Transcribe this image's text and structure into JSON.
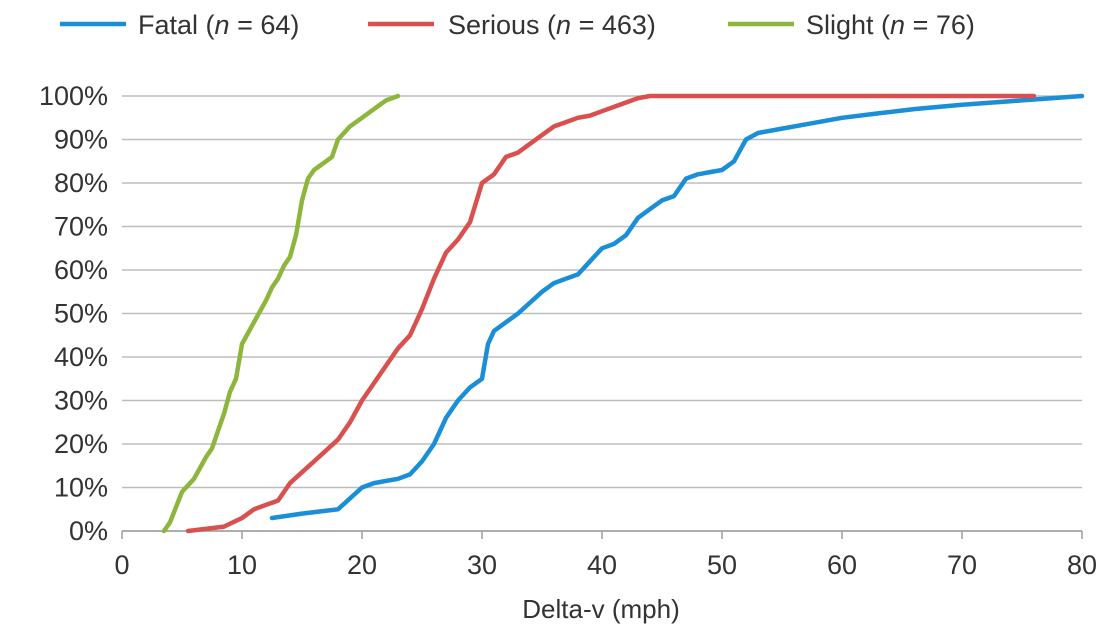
{
  "chart_data": {
    "type": "line",
    "title": "",
    "xlabel": "Delta-v (mph)",
    "ylabel": "",
    "xlim": [
      0,
      80
    ],
    "ylim": [
      0,
      100
    ],
    "x_ticks": [
      0,
      10,
      20,
      30,
      40,
      50,
      60,
      70,
      80
    ],
    "x_tick_labels": [
      "0",
      "10",
      "20",
      "30",
      "40",
      "50",
      "60",
      "70",
      "80"
    ],
    "y_ticks": [
      0,
      10,
      20,
      30,
      40,
      50,
      60,
      70,
      80,
      90,
      100
    ],
    "y_tick_labels": [
      "0%",
      "10%",
      "20%",
      "30%",
      "40%",
      "50%",
      "60%",
      "70%",
      "80%",
      "90%",
      "100%"
    ],
    "grid": "horizontal",
    "legend_position": "top",
    "series": [
      {
        "name": "Fatal",
        "n_label": "n",
        "n_value": "= 64)",
        "name_prefix": "Fatal (",
        "color": "#1a8fd8",
        "x": [
          12.5,
          15,
          18,
          20,
          21,
          23,
          24,
          25,
          26,
          27,
          28,
          29,
          30,
          30.5,
          31,
          33,
          35,
          36,
          37,
          38,
          39,
          40,
          41,
          42,
          43,
          44,
          45,
          46,
          47,
          48,
          49,
          50,
          51,
          52,
          53,
          55,
          57,
          60,
          63,
          66,
          70,
          75,
          80
        ],
        "y": [
          3,
          4,
          5,
          10,
          11,
          12,
          13,
          16,
          20,
          26,
          30,
          33,
          35,
          43,
          46,
          50,
          55,
          57,
          58,
          59,
          62,
          65,
          66,
          68,
          72,
          74,
          76,
          77,
          81,
          82,
          82.5,
          83,
          85,
          90,
          91.5,
          92.5,
          93.5,
          95,
          96,
          97,
          98,
          99,
          100
        ]
      },
      {
        "name": "Serious",
        "n_label": "n",
        "n_value": "= 463)",
        "name_prefix": "Serious (",
        "color": "#d9514e",
        "x": [
          5.5,
          8.5,
          10,
          11,
          12,
          13,
          14,
          16,
          18,
          19,
          20,
          21,
          22,
          23,
          24,
          25,
          26,
          27,
          28,
          29,
          30,
          31,
          32,
          33,
          34,
          35,
          36,
          37,
          38,
          39,
          40,
          41,
          42,
          43,
          44,
          50,
          60,
          70,
          76
        ],
        "y": [
          0,
          1,
          3,
          5,
          6,
          7,
          11,
          16,
          21,
          25,
          30,
          34,
          38,
          42,
          45,
          51,
          58,
          64,
          67,
          71,
          80,
          82,
          86,
          87,
          89,
          91,
          93,
          94,
          95,
          95.5,
          96.5,
          97.5,
          98.5,
          99.5,
          100,
          100,
          100,
          100,
          100
        ]
      },
      {
        "name": "Slight",
        "n_label": "n",
        "n_value": "= 76)",
        "name_prefix": "Slight (",
        "color": "#8db63c",
        "x": [
          3.5,
          4,
          5,
          6,
          7,
          7.5,
          8,
          8.5,
          9,
          9.5,
          10,
          11,
          12,
          12.5,
          13,
          13.5,
          14,
          14.5,
          15,
          15.5,
          16,
          17,
          17.5,
          18,
          19,
          20,
          21,
          22,
          23
        ],
        "y": [
          0,
          2,
          9,
          12,
          17,
          19,
          23,
          27,
          32,
          35,
          43,
          48,
          53,
          56,
          58,
          61,
          63,
          68,
          76,
          81,
          83,
          85,
          86,
          90,
          93,
          95,
          97,
          99,
          100
        ]
      }
    ]
  }
}
